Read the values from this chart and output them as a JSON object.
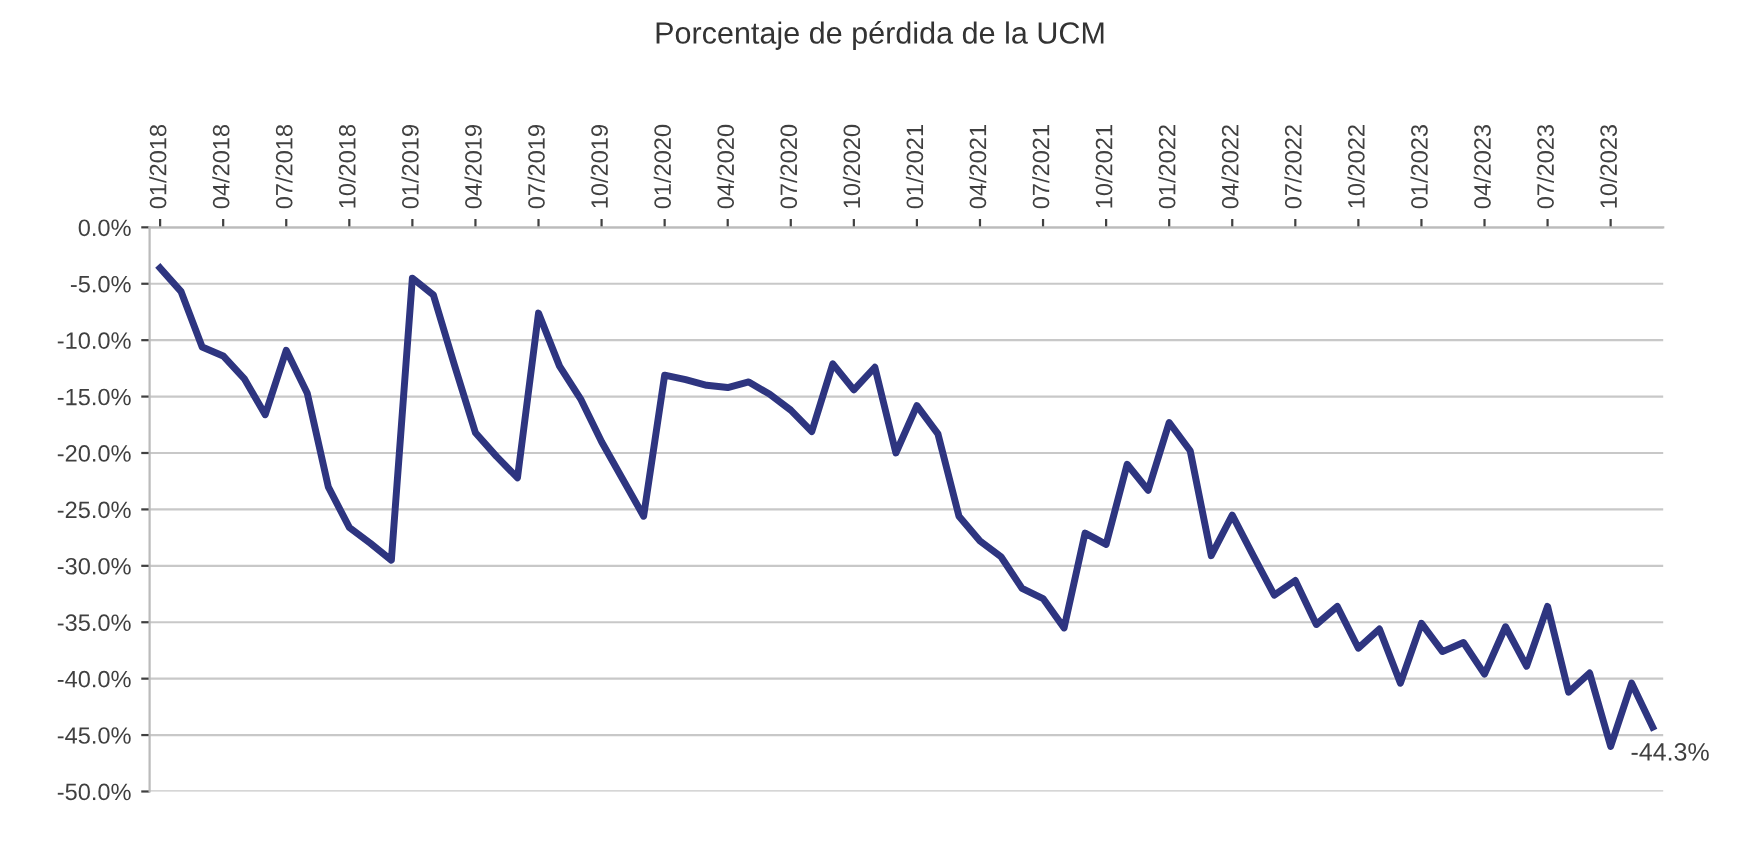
{
  "chart_data": {
    "type": "line",
    "title": "Porcentaje de pérdida de la UCM",
    "categories": [
      "01/2018",
      null,
      null,
      "04/2018",
      null,
      null,
      "07/2018",
      null,
      null,
      "10/2018",
      null,
      null,
      "01/2019",
      null,
      null,
      "04/2019",
      null,
      null,
      "07/2019",
      null,
      null,
      "10/2019",
      null,
      null,
      "01/2020",
      null,
      null,
      "04/2020",
      null,
      null,
      "07/2020",
      null,
      null,
      "10/2020",
      null,
      null,
      "01/2021",
      null,
      null,
      "04/2021",
      null,
      null,
      "07/2021",
      null,
      null,
      "10/2021",
      null,
      null,
      "01/2022",
      null,
      null,
      "04/2022",
      null,
      null,
      "07/2022",
      null,
      null,
      "10/2022",
      null,
      null,
      "01/2023",
      null,
      null,
      "04/2023",
      null,
      null,
      "07/2023",
      null,
      null,
      "10/2023",
      null,
      null
    ],
    "series": [
      {
        "color": "#2e3580",
        "values": [
          -3.6,
          -5.7,
          -10.6,
          -11.4,
          -13.4,
          -16.6,
          -10.9,
          -14.7,
          -23.0,
          -26.6,
          -28.0,
          -29.5,
          -4.5,
          -6.0,
          -12.2,
          -18.2,
          -20.3,
          -22.2,
          -7.6,
          -12.3,
          -15.2,
          -19.0,
          -22.3,
          -25.6,
          -13.1,
          -13.5,
          -14.0,
          -14.2,
          -13.7,
          -14.8,
          -16.2,
          -18.1,
          -12.1,
          -14.4,
          -12.4,
          -20.0,
          -15.8,
          -18.3,
          -25.6,
          -27.8,
          -29.2,
          -32.0,
          -32.9,
          -35.5,
          -27.1,
          -28.1,
          -21.0,
          -23.3,
          -17.3,
          -19.8,
          -29.1,
          -25.5,
          -29.1,
          -32.6,
          -31.3,
          -35.2,
          -33.6,
          -37.3,
          -35.6,
          -40.4,
          -35.1,
          -37.6,
          -36.8,
          -39.6,
          -35.4,
          -38.9,
          -33.6,
          -41.2,
          -39.5,
          -46.0,
          -40.4,
          -44.3
        ]
      }
    ],
    "ylim": [
      -50,
      0
    ],
    "yticks": [
      {
        "value": -50,
        "label": "-50.0%"
      },
      {
        "value": -45,
        "label": "-45.0%"
      },
      {
        "value": -40,
        "label": "-40.0%"
      },
      {
        "value": -35,
        "label": "-35.0%"
      },
      {
        "value": -30,
        "label": "-30.0%"
      },
      {
        "value": -25,
        "label": "-25.0%"
      },
      {
        "value": -20,
        "label": "-20.0%"
      },
      {
        "value": -15,
        "label": "-15.0%"
      },
      {
        "value": -10,
        "label": "-10.0%"
      },
      {
        "value": -5,
        "label": "-5.0%"
      },
      {
        "value": 0,
        "label": "0.0%"
      }
    ],
    "grid": "y",
    "legend": false,
    "marker": "none",
    "line_style": "solid",
    "annotations": [
      "-44.3%"
    ]
  }
}
